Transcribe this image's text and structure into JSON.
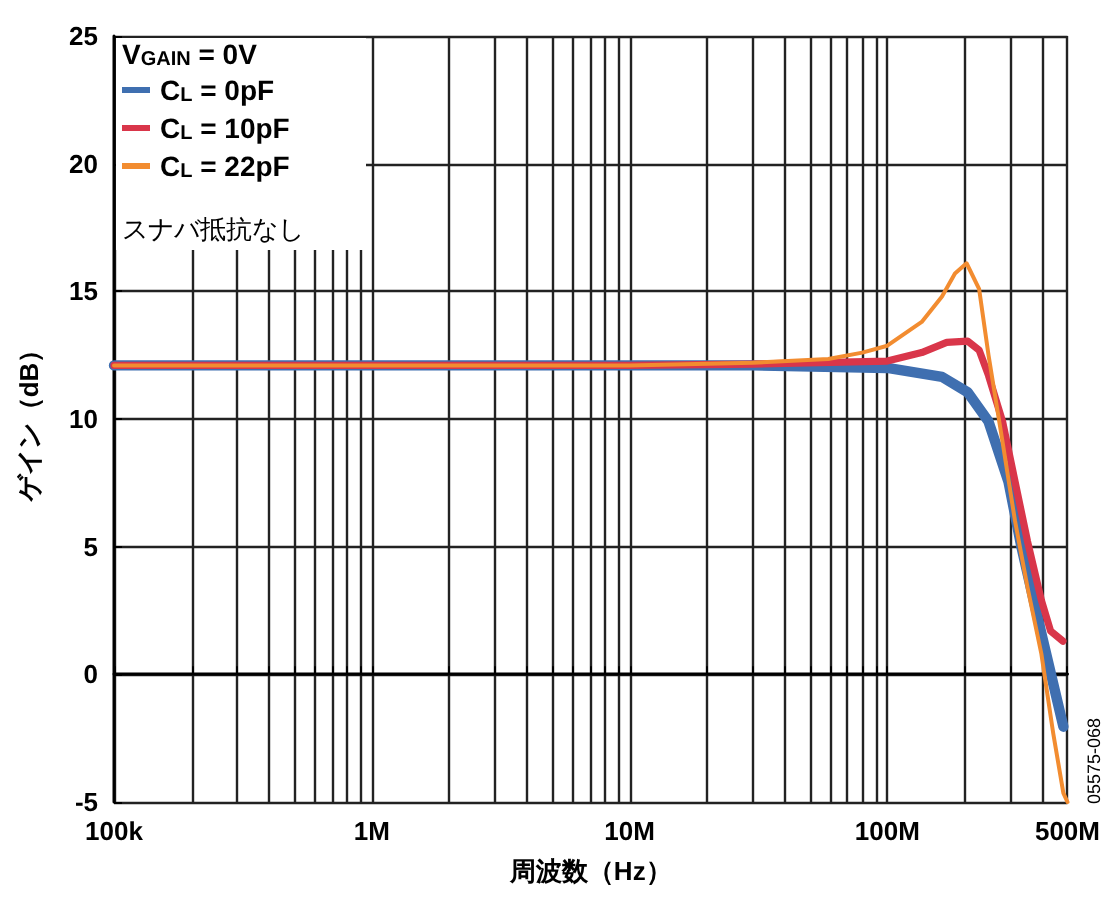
{
  "chart_data": {
    "type": "line",
    "xlabel": "周波数（Hz）",
    "ylabel": "ゲイン（dB）",
    "legend_title": "V$_{GAIN}$ = 0V",
    "annotations": [
      "スナバ抵抗なし",
      "05575-068"
    ],
    "log": "x",
    "xlim": [
      100000,
      500000000
    ],
    "xticks": [
      {
        "value": 100000,
        "label": "100k"
      },
      {
        "value": 200000,
        "label": null
      },
      {
        "value": 300000,
        "label": null
      },
      {
        "value": 400000,
        "label": null
      },
      {
        "value": 500000,
        "label": null
      },
      {
        "value": 600000,
        "label": null
      },
      {
        "value": 700000,
        "label": null
      },
      {
        "value": 800000,
        "label": null
      },
      {
        "value": 900000,
        "label": null
      },
      {
        "value": 1000000,
        "label": "1M"
      },
      {
        "value": 2000000,
        "label": null
      },
      {
        "value": 3000000,
        "label": null
      },
      {
        "value": 4000000,
        "label": null
      },
      {
        "value": 5000000,
        "label": null
      },
      {
        "value": 6000000,
        "label": null
      },
      {
        "value": 7000000,
        "label": null
      },
      {
        "value": 8000000,
        "label": null
      },
      {
        "value": 9000000,
        "label": null
      },
      {
        "value": 10000000,
        "label": "10M"
      },
      {
        "value": 20000000,
        "label": null
      },
      {
        "value": 30000000,
        "label": null
      },
      {
        "value": 40000000,
        "label": null
      },
      {
        "value": 50000000,
        "label": null
      },
      {
        "value": 60000000,
        "label": null
      },
      {
        "value": 70000000,
        "label": null
      },
      {
        "value": 80000000,
        "label": null
      },
      {
        "value": 90000000,
        "label": null
      },
      {
        "value": 100000000,
        "label": "100M"
      },
      {
        "value": 200000000,
        "label": null
      },
      {
        "value": 300000000,
        "label": null
      },
      {
        "value": 400000000,
        "label": null
      },
      {
        "value": 500000000,
        "label": "500M"
      }
    ],
    "ylim": [
      -5,
      25
    ],
    "yticks": [
      -5,
      0,
      5,
      10,
      15,
      20,
      25
    ],
    "grid": true,
    "legend": "top left",
    "marker": "none",
    "line_style": "solid",
    "series": [
      {
        "name": "C$_{L}$ = 0pF",
        "color": "#3f6fb0",
        "x": [
          100000,
          1000000,
          10000000,
          30000000,
          100000000,
          163000000,
          205000000,
          247000000,
          295000000,
          332000000,
          396000000,
          482000000
        ],
        "values": [
          12.1,
          12.1,
          12.1,
          12.1,
          12.0,
          11.65,
          11.05,
          9.9,
          7.55,
          4.95,
          1.6,
          -2.05
        ]
      },
      {
        "name": "C$_{L}$ = 10pF",
        "color": "#d9364a",
        "x": [
          100000,
          1000000,
          10000000,
          30000000,
          100000000,
          136000000,
          170000000,
          205000000,
          227000000,
          247000000,
          280000000,
          313000000,
          350000000,
          396000000,
          430000000,
          480000000
        ],
        "values": [
          12.1,
          12.1,
          12.1,
          12.15,
          12.27,
          12.6,
          13.0,
          13.05,
          12.7,
          11.7,
          9.9,
          7.55,
          5.2,
          2.9,
          1.7,
          1.3
        ]
      },
      {
        "name": "C$_{L}$ = 22pF",
        "color": "#f28c30",
        "x": [
          100000,
          1000000,
          10000000,
          30000000,
          59000000,
          80000000,
          100000000,
          136000000,
          163000000,
          183000000,
          203000000,
          227000000,
          247000000,
          280000000,
          313000000,
          350000000,
          396000000,
          440000000,
          482000000,
          500000000
        ],
        "values": [
          12.1,
          12.1,
          12.1,
          12.2,
          12.35,
          12.6,
          12.87,
          13.8,
          14.8,
          15.7,
          16.1,
          15.1,
          12.5,
          9.1,
          6.0,
          3.4,
          0.8,
          -2.3,
          -4.65,
          -5.0
        ]
      }
    ]
  }
}
